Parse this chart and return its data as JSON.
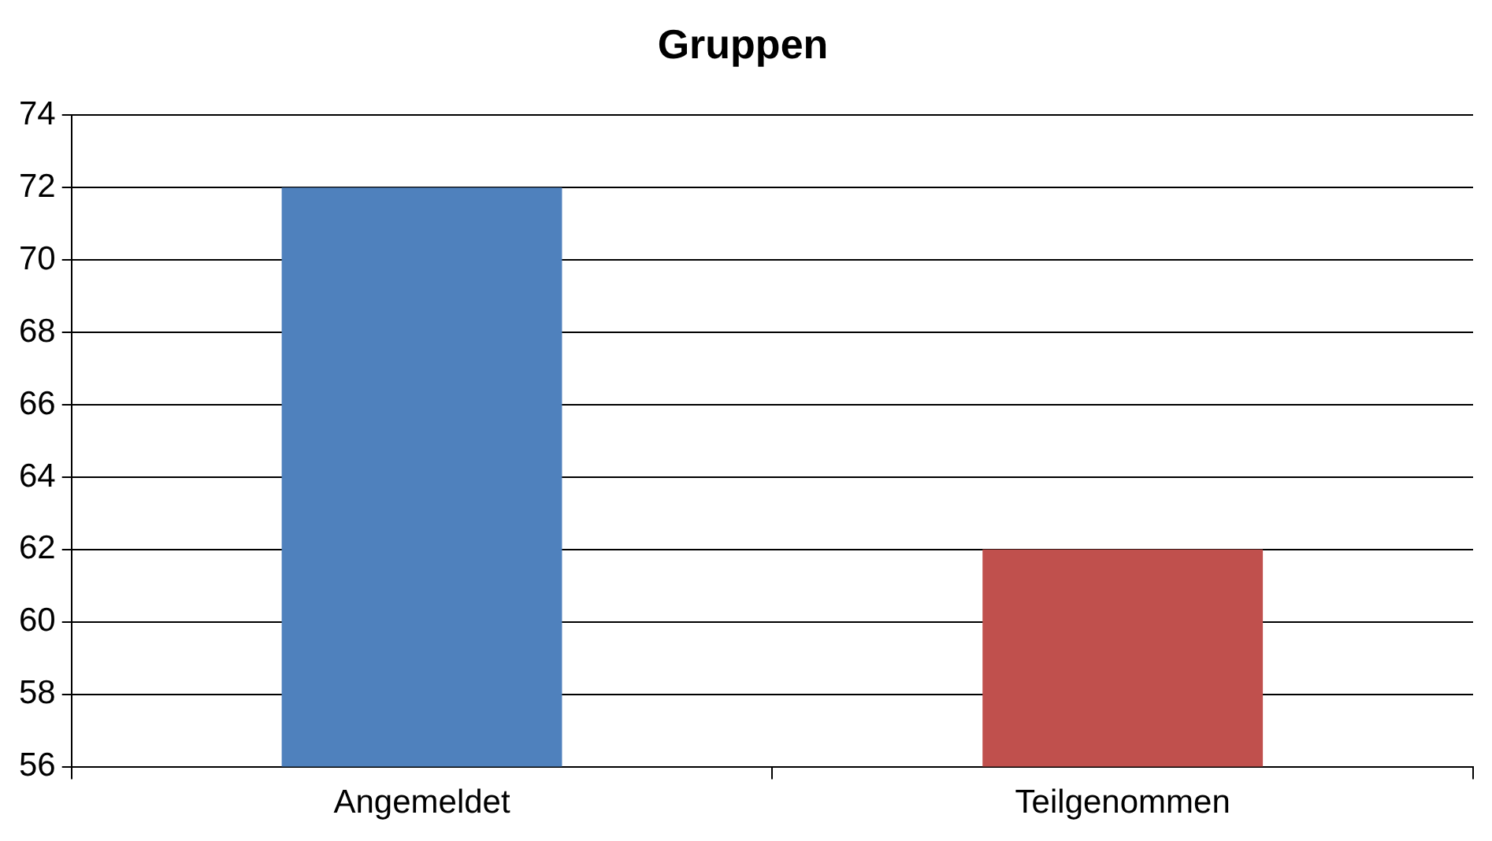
{
  "chart_data": {
    "type": "bar",
    "title": "Gruppen",
    "categories": [
      "Angemeldet",
      "Teilgenommen"
    ],
    "values": [
      72,
      62
    ],
    "colors": [
      "#4f81bd",
      "#c0504d"
    ],
    "ylim": [
      56,
      74
    ],
    "yticks": [
      56,
      58,
      60,
      62,
      64,
      66,
      68,
      70,
      72,
      74
    ],
    "grid": "y",
    "legend": false
  }
}
